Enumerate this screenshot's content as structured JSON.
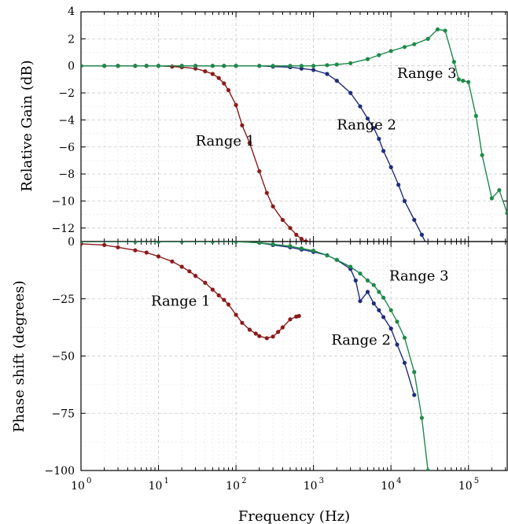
{
  "chart_data": [
    {
      "type": "line",
      "panel": "top",
      "xlabel": "Frequency (Hz)",
      "ylabel": "Relative Gain (dB)",
      "xscale": "log",
      "xlim": [
        1,
        316228
      ],
      "ylim": [
        -13,
        4
      ],
      "yticks": [
        4,
        2,
        0,
        -2,
        -4,
        -6,
        -8,
        -10,
        -12
      ],
      "grid": true,
      "series": [
        {
          "name": "Range 1",
          "color": "#8b1a1a",
          "x": [
            1,
            2,
            3,
            5,
            7,
            10,
            15,
            20,
            30,
            40,
            50,
            60,
            70,
            80,
            100,
            120,
            150,
            200,
            250,
            300,
            400,
            500,
            600,
            700,
            800,
            900,
            1000
          ],
          "y": [
            0,
            0,
            0,
            0,
            0,
            0,
            -0.05,
            -0.1,
            -0.2,
            -0.4,
            -0.6,
            -0.9,
            -1.3,
            -1.8,
            -2.9,
            -4.4,
            -5.7,
            -7.8,
            -9.4,
            -10.4,
            -11.4,
            -12.0,
            -12.5,
            -12.8,
            -13.0,
            -13.2,
            -13.3
          ]
        },
        {
          "name": "Range 2",
          "color": "#1f2d7a",
          "x": [
            1,
            2,
            3,
            5,
            7,
            10,
            20,
            30,
            50,
            70,
            100,
            200,
            300,
            500,
            700,
            1000,
            1500,
            2000,
            3000,
            4000,
            5000,
            6000,
            7000,
            8000,
            10000,
            12500,
            15000,
            20000,
            25000,
            30000
          ],
          "y": [
            0,
            0,
            0,
            0,
            0,
            0,
            0,
            0,
            0,
            0,
            0,
            0,
            -0.05,
            -0.1,
            -0.2,
            -0.3,
            -0.6,
            -1.1,
            -2.0,
            -3.0,
            -3.9,
            -4.6,
            -5.4,
            -6.3,
            -7.5,
            -8.8,
            -10.0,
            -11.4,
            -12.5,
            -13.4
          ]
        },
        {
          "name": "Range 3",
          "color": "#1e8a4a",
          "x": [
            1,
            2,
            3,
            5,
            7,
            10,
            20,
            30,
            50,
            70,
            100,
            200,
            300,
            500,
            700,
            1000,
            1500,
            2000,
            3000,
            5000,
            7000,
            10000,
            15000,
            20000,
            30000,
            40000,
            50000,
            65000,
            75000,
            85000,
            100000,
            125000,
            150000,
            200000,
            250000,
            316000
          ],
          "y": [
            0,
            0,
            0,
            0,
            0,
            0,
            0,
            0,
            0,
            0,
            0,
            0,
            0,
            0,
            0,
            0,
            0.05,
            0.1,
            0.2,
            0.5,
            0.8,
            1.1,
            1.4,
            1.6,
            2.0,
            2.7,
            2.6,
            0.3,
            -1.0,
            -1.1,
            -1.2,
            -3.7,
            -6.6,
            -9.8,
            -9.2,
            -10.9
          ]
        }
      ],
      "annotations": [
        {
          "text": "Range 1",
          "x": 30,
          "y": -5.9
        },
        {
          "text": "Range 2",
          "x": 2000,
          "y": -4.7
        },
        {
          "text": "Range 3",
          "x": 12000,
          "y": -0.9
        }
      ]
    },
    {
      "type": "line",
      "panel": "bottom",
      "xlabel": "Frequency (Hz)",
      "ylabel": "Phase shift (degrees)",
      "xscale": "log",
      "xlim": [
        1,
        316228
      ],
      "ylim": [
        -100,
        0
      ],
      "yticks": [
        0,
        -25,
        -50,
        -75,
        -100
      ],
      "grid": true,
      "series": [
        {
          "name": "Range 1",
          "color": "#8b1a1a",
          "x": [
            1,
            2,
            3,
            5,
            7,
            10,
            15,
            20,
            25,
            30,
            40,
            50,
            60,
            70,
            80,
            100,
            120,
            150,
            180,
            200,
            250,
            300,
            350,
            400,
            500,
            600,
            650
          ],
          "y": [
            -1,
            -1.5,
            -2.5,
            -3.8,
            -4.8,
            -6.5,
            -8.7,
            -11,
            -13,
            -15,
            -18,
            -21,
            -23.5,
            -25.5,
            -27.5,
            -32,
            -35.5,
            -38.5,
            -40.2,
            -41.3,
            -42.2,
            -41.5,
            -39.5,
            -37.5,
            -34,
            -32.8,
            -32.5
          ]
        },
        {
          "name": "Range 2",
          "color": "#1f2d7a",
          "x": [
            1,
            5,
            10,
            20,
            50,
            100,
            200,
            300,
            500,
            700,
            1000,
            1500,
            2000,
            3000,
            3500,
            4000,
            5000,
            6000,
            7000,
            8000,
            10000,
            12000,
            15000,
            20000
          ],
          "y": [
            0,
            0,
            0,
            0,
            0,
            0,
            -0.5,
            -1.5,
            -2.5,
            -3.5,
            -4.5,
            -6,
            -8,
            -12,
            -17,
            -26,
            -22,
            -27,
            -30,
            -33,
            -38,
            -45,
            -53,
            -67
          ]
        },
        {
          "name": "Range 3",
          "color": "#1e8a4a",
          "x": [
            1,
            5,
            10,
            20,
            50,
            100,
            200,
            300,
            500,
            700,
            1000,
            1500,
            2000,
            3000,
            4000,
            5000,
            6000,
            7000,
            8000,
            10000,
            12000,
            15000,
            20000,
            25000,
            30000
          ],
          "y": [
            0,
            0,
            0,
            0,
            0,
            0,
            -0.5,
            -1.2,
            -2,
            -3,
            -4,
            -6,
            -8,
            -11,
            -14,
            -17,
            -19,
            -22,
            -24.5,
            -30,
            -35,
            -42,
            -57,
            -77,
            -100
          ]
        }
      ],
      "annotations": [
        {
          "text": "Range 1",
          "x": 8,
          "y": -28
        },
        {
          "text": "Range 2",
          "x": 1700,
          "y": -45
        },
        {
          "text": "Range 3",
          "x": 9500,
          "y": -17
        }
      ]
    }
  ]
}
